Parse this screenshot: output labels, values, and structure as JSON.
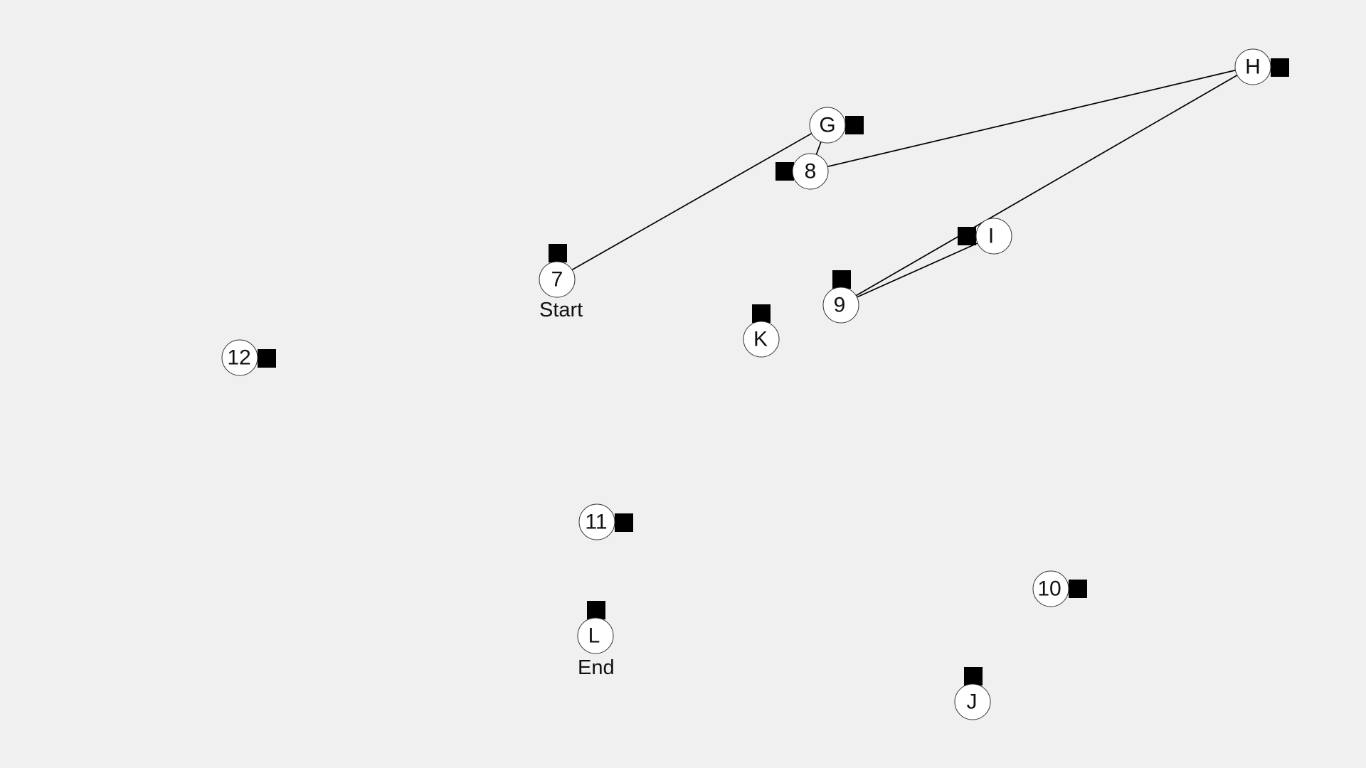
{
  "colors": {
    "background": "#f0f0f0",
    "node_fill": "#ffffff",
    "node_stroke": "#333333",
    "marker": "#000000",
    "edge": "#000000"
  },
  "captions": {
    "start": "Start",
    "end": "End"
  },
  "nodes": [
    {
      "id": "n7",
      "label": "7"
    },
    {
      "id": "nG",
      "label": "G"
    },
    {
      "id": "n8",
      "label": "8"
    },
    {
      "id": "nH",
      "label": "H"
    },
    {
      "id": "nI",
      "label": "I"
    },
    {
      "id": "n9",
      "label": "9"
    },
    {
      "id": "nK",
      "label": "K"
    },
    {
      "id": "n12",
      "label": "12"
    },
    {
      "id": "n11",
      "label": "11"
    },
    {
      "id": "n10",
      "label": "10"
    },
    {
      "id": "nL",
      "label": "L"
    },
    {
      "id": "nJ",
      "label": "J"
    }
  ],
  "path": [
    "n7",
    "nG",
    "n8",
    "nH",
    "n9",
    "nI"
  ]
}
